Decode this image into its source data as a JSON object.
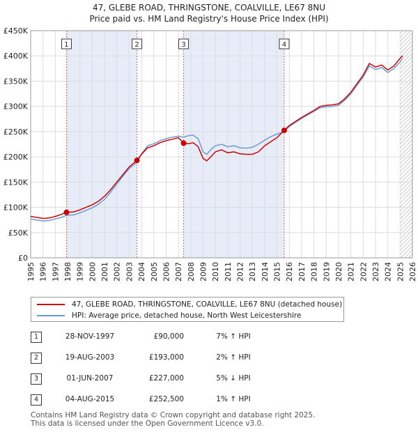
{
  "header": {
    "title": "47, GLEBE ROAD, THRINGSTONE, COALVILLE, LE67 8NU",
    "subtitle": "Price paid vs. HM Land Registry's House Price Index (HPI)"
  },
  "chart_data": {
    "type": "line",
    "title": "47, GLEBE ROAD, THRINGSTONE, COALVILLE, LE67 8NU",
    "subtitle": "Price paid vs. HM Land Registry's House Price Index (HPI)",
    "xlim": [
      1995,
      2026
    ],
    "ylim": [
      0,
      450000
    ],
    "x_ticks": [
      1995,
      1996,
      1997,
      1998,
      1999,
      2000,
      2001,
      2002,
      2003,
      2004,
      2005,
      2006,
      2007,
      2008,
      2009,
      2010,
      2011,
      2012,
      2013,
      2014,
      2015,
      2016,
      2017,
      2018,
      2019,
      2020,
      2021,
      2022,
      2023,
      2024,
      2025,
      2026
    ],
    "y_ticks": [
      0,
      50000,
      100000,
      150000,
      200000,
      250000,
      300000,
      350000,
      400000,
      450000
    ],
    "y_tick_labels": [
      "£0",
      "£50K",
      "£100K",
      "£150K",
      "£200K",
      "£250K",
      "£300K",
      "£350K",
      "£400K",
      "£450K"
    ],
    "grid": true,
    "ownership_shading": [
      [
        1997.91,
        2003.63
      ],
      [
        2007.42,
        2015.59
      ]
    ],
    "future_hatch_from": 2025.0,
    "series": [
      {
        "name": "47, GLEBE ROAD, THRINGSTONE, COALVILLE, LE67 8NU (detached house)",
        "color": "#cc0000",
        "points": [
          [
            1995.0,
            82000
          ],
          [
            1995.5,
            80000
          ],
          [
            1996.0,
            78000
          ],
          [
            1996.5,
            79000
          ],
          [
            1997.0,
            82000
          ],
          [
            1997.5,
            86000
          ],
          [
            1997.91,
            90000
          ],
          [
            1998.5,
            91000
          ],
          [
            1999.0,
            95000
          ],
          [
            1999.5,
            100000
          ],
          [
            2000.0,
            105000
          ],
          [
            2000.5,
            112000
          ],
          [
            2001.0,
            122000
          ],
          [
            2001.5,
            135000
          ],
          [
            2002.0,
            150000
          ],
          [
            2002.5,
            165000
          ],
          [
            2003.0,
            180000
          ],
          [
            2003.63,
            193000
          ],
          [
            2004.0,
            205000
          ],
          [
            2004.5,
            218000
          ],
          [
            2005.0,
            222000
          ],
          [
            2005.5,
            228000
          ],
          [
            2006.0,
            232000
          ],
          [
            2006.5,
            235000
          ],
          [
            2007.0,
            238000
          ],
          [
            2007.42,
            227000
          ],
          [
            2007.8,
            226000
          ],
          [
            2008.2,
            228000
          ],
          [
            2008.6,
            220000
          ],
          [
            2009.0,
            197000
          ],
          [
            2009.3,
            192000
          ],
          [
            2009.7,
            202000
          ],
          [
            2010.0,
            210000
          ],
          [
            2010.5,
            214000
          ],
          [
            2011.0,
            208000
          ],
          [
            2011.5,
            210000
          ],
          [
            2012.0,
            206000
          ],
          [
            2012.5,
            205000
          ],
          [
            2013.0,
            205000
          ],
          [
            2013.5,
            210000
          ],
          [
            2014.0,
            222000
          ],
          [
            2014.5,
            230000
          ],
          [
            2015.0,
            238000
          ],
          [
            2015.59,
            252500
          ],
          [
            2016.0,
            262000
          ],
          [
            2016.5,
            270000
          ],
          [
            2017.0,
            278000
          ],
          [
            2017.5,
            285000
          ],
          [
            2018.0,
            292000
          ],
          [
            2018.5,
            300000
          ],
          [
            2019.0,
            302000
          ],
          [
            2019.5,
            303000
          ],
          [
            2020.0,
            305000
          ],
          [
            2020.5,
            315000
          ],
          [
            2021.0,
            328000
          ],
          [
            2021.5,
            345000
          ],
          [
            2022.0,
            362000
          ],
          [
            2022.5,
            385000
          ],
          [
            2023.0,
            378000
          ],
          [
            2023.5,
            382000
          ],
          [
            2024.0,
            372000
          ],
          [
            2024.5,
            380000
          ],
          [
            2025.0,
            395000
          ],
          [
            2025.2,
            400000
          ]
        ]
      },
      {
        "name": "HPI: Average price, detached house, North West Leicestershire",
        "color": "#6b9bd2",
        "points": [
          [
            1995.0,
            77000
          ],
          [
            1995.5,
            75000
          ],
          [
            1996.0,
            73000
          ],
          [
            1996.5,
            74000
          ],
          [
            1997.0,
            77000
          ],
          [
            1997.5,
            80000
          ],
          [
            1997.91,
            84000
          ],
          [
            1998.5,
            85000
          ],
          [
            1999.0,
            89000
          ],
          [
            1999.5,
            94000
          ],
          [
            2000.0,
            99000
          ],
          [
            2000.5,
            106000
          ],
          [
            2001.0,
            116000
          ],
          [
            2001.5,
            130000
          ],
          [
            2002.0,
            146000
          ],
          [
            2002.5,
            162000
          ],
          [
            2003.0,
            177000
          ],
          [
            2003.63,
            189000
          ],
          [
            2004.0,
            206000
          ],
          [
            2004.5,
            222000
          ],
          [
            2005.0,
            226000
          ],
          [
            2005.5,
            232000
          ],
          [
            2006.0,
            236000
          ],
          [
            2006.5,
            239000
          ],
          [
            2007.0,
            241000
          ],
          [
            2007.42,
            239000
          ],
          [
            2007.8,
            242000
          ],
          [
            2008.2,
            243000
          ],
          [
            2008.6,
            236000
          ],
          [
            2009.0,
            210000
          ],
          [
            2009.3,
            205000
          ],
          [
            2009.7,
            216000
          ],
          [
            2010.0,
            222000
          ],
          [
            2010.5,
            225000
          ],
          [
            2011.0,
            220000
          ],
          [
            2011.5,
            222000
          ],
          [
            2012.0,
            218000
          ],
          [
            2012.5,
            217000
          ],
          [
            2013.0,
            219000
          ],
          [
            2013.5,
            225000
          ],
          [
            2014.0,
            233000
          ],
          [
            2014.5,
            240000
          ],
          [
            2015.0,
            245000
          ],
          [
            2015.59,
            250000
          ],
          [
            2016.0,
            260000
          ],
          [
            2016.5,
            268000
          ],
          [
            2017.0,
            276000
          ],
          [
            2017.5,
            283000
          ],
          [
            2018.0,
            290000
          ],
          [
            2018.5,
            297000
          ],
          [
            2019.0,
            299000
          ],
          [
            2019.5,
            300000
          ],
          [
            2020.0,
            302000
          ],
          [
            2020.5,
            312000
          ],
          [
            2021.0,
            325000
          ],
          [
            2021.5,
            342000
          ],
          [
            2022.0,
            358000
          ],
          [
            2022.5,
            380000
          ],
          [
            2023.0,
            373000
          ],
          [
            2023.5,
            377000
          ],
          [
            2024.0,
            367000
          ],
          [
            2024.5,
            375000
          ],
          [
            2025.0,
            388000
          ],
          [
            2025.2,
            395000
          ]
        ]
      }
    ],
    "sales": [
      {
        "label": "1",
        "x": 1997.91,
        "price": 90000
      },
      {
        "label": "2",
        "x": 2003.63,
        "price": 193000
      },
      {
        "label": "3",
        "x": 2007.42,
        "price": 227000
      },
      {
        "label": "4",
        "x": 2015.59,
        "price": 252500
      }
    ]
  },
  "legend": {
    "property": "47, GLEBE ROAD, THRINGSTONE, COALVILLE, LE67 8NU (detached house)",
    "hpi": "HPI: Average price, detached house, North West Leicestershire"
  },
  "transactions": [
    {
      "num": "1",
      "date": "28-NOV-1997",
      "price": "£90,000",
      "hpi": "7% ↑ HPI"
    },
    {
      "num": "2",
      "date": "19-AUG-2003",
      "price": "£193,000",
      "hpi": "2% ↑ HPI"
    },
    {
      "num": "3",
      "date": "01-JUN-2007",
      "price": "£227,000",
      "hpi": "5% ↓ HPI"
    },
    {
      "num": "4",
      "date": "04-AUG-2015",
      "price": "£252,500",
      "hpi": "1% ↑ HPI"
    }
  ],
  "footer": {
    "line1": "Contains HM Land Registry data © Crown copyright and database right 2025.",
    "line2": "This data is licensed under the Open Government Licence v3.0."
  }
}
